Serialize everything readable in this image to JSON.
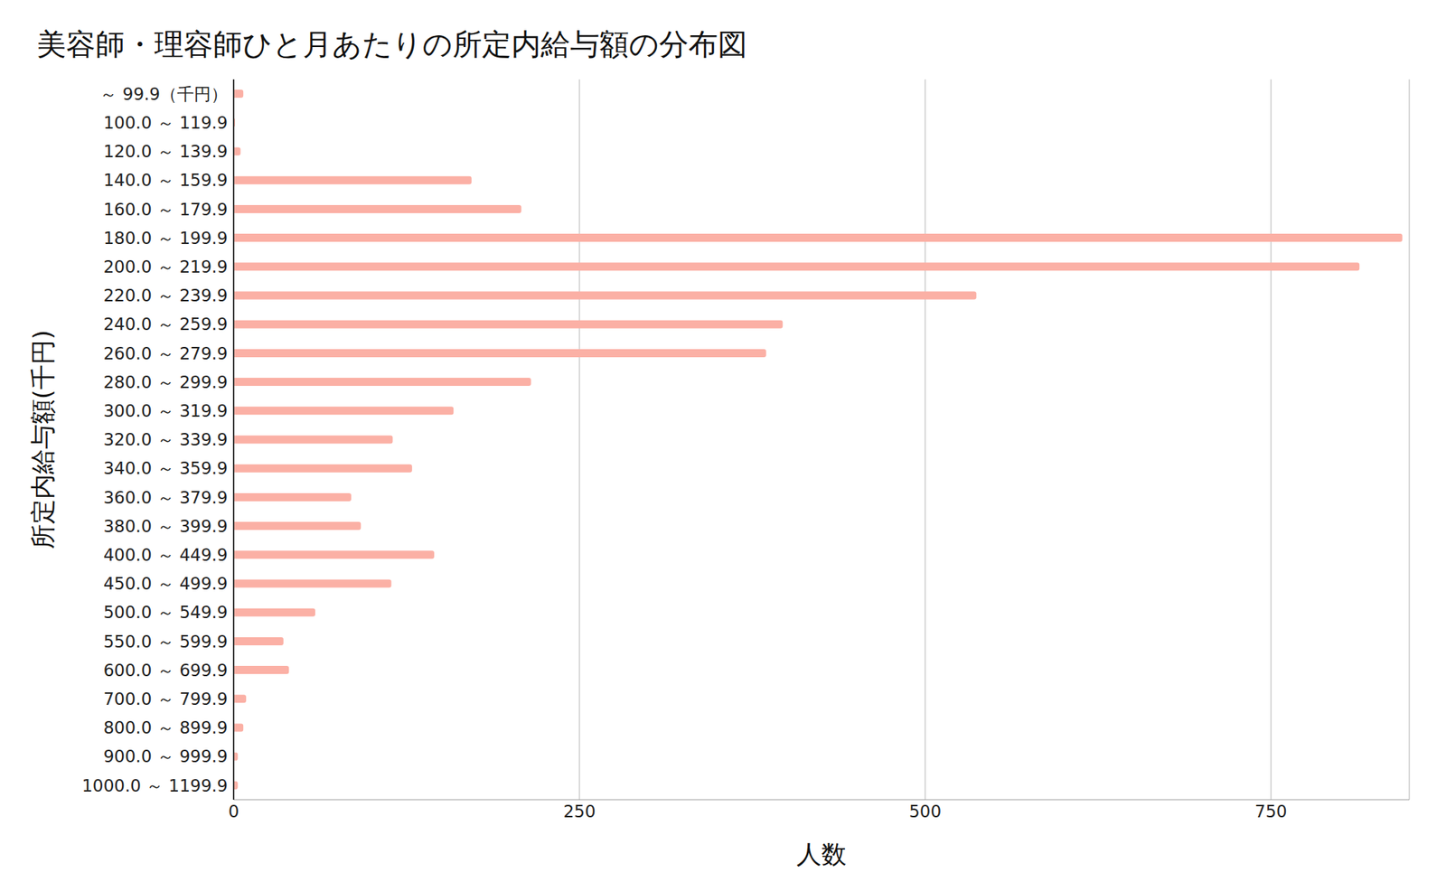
{
  "chart_data": {
    "type": "bar",
    "title": "美容師・理容師ひと月あたりの所定内給与額の分布図",
    "x_label": "人数",
    "y_label": "所定内給与額(千円)",
    "orientation": "horizontal",
    "categories": [
      "～  99.9（千円）",
      "100.0 ～  119.9",
      "120.0 ～  139.9",
      "140.0 ～  159.9",
      "160.0 ～  179.9",
      "180.0 ～  199.9",
      "200.0 ～  219.9",
      "220.0 ～  239.9",
      "240.0 ～  259.9",
      "260.0 ～  279.9",
      "280.0 ～  299.9",
      "300.0 ～  319.9",
      "320.0 ～  339.9",
      "340.0 ～  359.9",
      "360.0 ～  379.9",
      "380.0 ～  399.9",
      "400.0 ～  449.9",
      "450.0 ～  499.9",
      "500.0 ～  549.9",
      "550.0 ～  599.9",
      "600.0 ～  699.9",
      "700.0 ～  799.9",
      "800.0 ～  899.9",
      "900.0 ～  999.9",
      "1000.0 ～ 1199.9"
    ],
    "values": [
      7,
      1,
      5,
      172,
      208,
      845,
      814,
      537,
      397,
      385,
      215,
      159,
      115,
      129,
      85,
      92,
      145,
      114,
      59,
      36,
      40,
      9,
      7,
      3,
      3
    ],
    "color": "#fbb0a5",
    "xlim": [
      0,
      850
    ],
    "xticks": [
      0,
      250,
      500,
      750
    ],
    "grid": true
  }
}
